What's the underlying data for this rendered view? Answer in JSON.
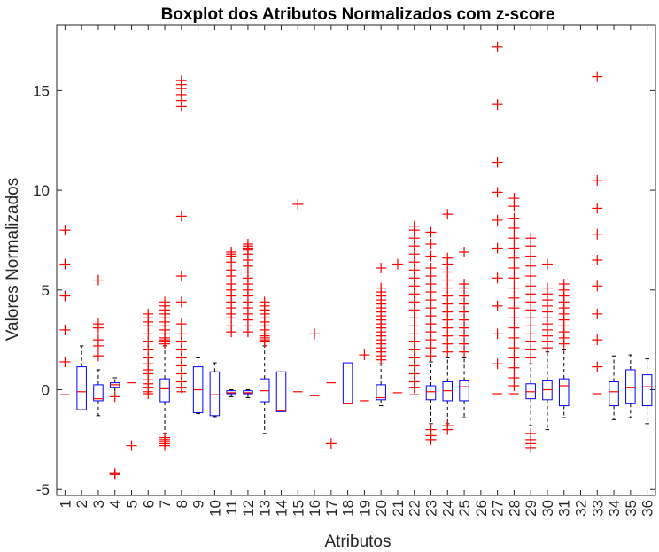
{
  "chart_data": {
    "type": "boxplot",
    "title": "Boxplot dos Atributos Normalizados com z-score",
    "xlabel": "Atributos",
    "ylabel": "Valores Normalizados",
    "ylim": [
      -5.3,
      18.3
    ],
    "yticks": [
      -5,
      0,
      5,
      10,
      15
    ],
    "categories": [
      "1",
      "2",
      "3",
      "4",
      "5",
      "6",
      "7",
      "8",
      "9",
      "10",
      "11",
      "12",
      "13",
      "14",
      "15",
      "16",
      "17",
      "18",
      "19",
      "20",
      "21",
      "22",
      "23",
      "24",
      "25",
      "26",
      "27",
      "28",
      "29",
      "30",
      "31",
      "32",
      "33",
      "34",
      "35",
      "36"
    ],
    "grid": false,
    "colors": {
      "box": "#0000ff",
      "median": "#ff0000",
      "outlier": "#ff0000",
      "whisker": "#000000",
      "axis": "#262626"
    },
    "boxes": [
      {
        "cat": "1",
        "med": -0.25,
        "q1": -0.25,
        "q3": -0.25,
        "wl": -0.25,
        "wh": -0.25,
        "out": [
          1.4,
          3.0,
          4.7,
          6.3,
          8.0
        ]
      },
      {
        "cat": "2",
        "med": -0.1,
        "q1": -1.0,
        "q3": 1.15,
        "wl": -1.0,
        "wh": 2.2,
        "out": []
      },
      {
        "cat": "3",
        "med": -0.45,
        "q1": -0.55,
        "q3": 0.25,
        "wl": -1.3,
        "wh": 1.0,
        "out": [
          1.7,
          2.2,
          2.5,
          3.1,
          3.3,
          5.5
        ]
      },
      {
        "cat": "4",
        "med": 0.25,
        "q1": 0.1,
        "q3": 0.35,
        "wl": -0.35,
        "wh": 0.6,
        "out": [
          -0.35,
          -4.2,
          -4.25
        ]
      },
      {
        "cat": "5",
        "med": 0.35,
        "q1": 0.35,
        "q3": 0.35,
        "wl": 0.35,
        "wh": 0.35,
        "out": [
          -2.8
        ]
      },
      {
        "cat": "6",
        "med": -0.1,
        "q1": -0.1,
        "q3": -0.1,
        "wl": -0.1,
        "wh": -0.1,
        "out": [
          -0.2,
          0.1,
          0.3,
          0.5,
          0.8,
          1.0,
          1.3,
          1.6,
          2.0,
          2.4,
          2.8,
          3.2,
          3.4,
          3.6,
          3.8
        ]
      },
      {
        "cat": "7",
        "med": 0.05,
        "q1": -0.6,
        "q3": 0.55,
        "wl": -2.2,
        "wh": 2.2,
        "out": [
          2.3,
          2.4,
          2.5,
          2.6,
          2.8,
          3.0,
          3.2,
          3.4,
          3.6,
          3.8,
          4.0,
          4.2,
          4.4,
          -2.4,
          -2.5,
          -2.6,
          -2.7,
          -2.8
        ]
      },
      {
        "cat": "8",
        "med": -0.1,
        "q1": -0.1,
        "q3": -0.1,
        "wl": -0.1,
        "wh": -0.1,
        "out": [
          0.1,
          0.4,
          0.8,
          1.2,
          1.6,
          2.0,
          2.4,
          2.8,
          3.3,
          4.4,
          5.7,
          8.7,
          14.2,
          14.5,
          14.8,
          15.1,
          15.3,
          15.5
        ]
      },
      {
        "cat": "9",
        "med": 0.0,
        "q1": -1.15,
        "q3": 1.15,
        "wl": -1.2,
        "wh": 1.6,
        "out": []
      },
      {
        "cat": "10",
        "med": -0.25,
        "q1": -1.3,
        "q3": 0.9,
        "wl": -1.35,
        "wh": 1.35,
        "out": []
      },
      {
        "cat": "11",
        "med": -0.15,
        "q1": -0.2,
        "q3": -0.05,
        "wl": -0.35,
        "wh": 0.0,
        "out": [
          2.9,
          3.2,
          3.6,
          3.8,
          4.1,
          4.4,
          4.7,
          5.0,
          5.3,
          5.7,
          6.0,
          6.4,
          6.7,
          6.8,
          6.9
        ]
      },
      {
        "cat": "12",
        "med": -0.15,
        "q1": -0.2,
        "q3": -0.05,
        "wl": -0.4,
        "wh": 0.0,
        "out": [
          2.9,
          3.2,
          3.5,
          3.8,
          4.1,
          4.4,
          4.7,
          5.0,
          5.3,
          5.6,
          5.9,
          6.2,
          6.5,
          6.8,
          7.0,
          7.1,
          7.2,
          7.3
        ]
      },
      {
        "cat": "13",
        "med": -0.05,
        "q1": -0.6,
        "q3": 0.55,
        "wl": -2.2,
        "wh": 2.2,
        "out": [
          2.4,
          2.5,
          2.6,
          2.7,
          2.8,
          3.0,
          3.2,
          3.4,
          3.6,
          3.8,
          4.0,
          4.2,
          4.4
        ]
      },
      {
        "cat": "14",
        "med": -1.05,
        "q1": -1.1,
        "q3": 0.9,
        "wl": -1.1,
        "wh": 0.9,
        "out": []
      },
      {
        "cat": "15",
        "med": -0.1,
        "q1": -0.1,
        "q3": -0.1,
        "wl": -0.1,
        "wh": -0.1,
        "out": [
          9.3
        ]
      },
      {
        "cat": "16",
        "med": -0.3,
        "q1": -0.3,
        "q3": -0.3,
        "wl": -0.3,
        "wh": -0.3,
        "out": [
          2.8
        ]
      },
      {
        "cat": "17",
        "med": 0.35,
        "q1": 0.35,
        "q3": 0.35,
        "wl": 0.35,
        "wh": 0.35,
        "out": [
          -2.7
        ]
      },
      {
        "cat": "18",
        "med": -0.7,
        "q1": -0.7,
        "q3": 1.35,
        "wl": -0.7,
        "wh": 1.35,
        "out": []
      },
      {
        "cat": "19",
        "med": -0.55,
        "q1": -0.55,
        "q3": -0.55,
        "wl": -0.55,
        "wh": -0.55,
        "out": [
          1.75
        ]
      },
      {
        "cat": "20",
        "med": -0.4,
        "q1": -0.5,
        "q3": 0.25,
        "wl": -0.8,
        "wh": 1.3,
        "out": [
          1.5,
          1.7,
          1.9,
          2.1,
          2.3,
          2.5,
          2.7,
          2.9,
          3.1,
          3.3,
          3.5,
          3.7,
          3.9,
          4.1,
          4.3,
          4.5,
          4.7,
          4.9,
          5.1,
          6.1
        ]
      },
      {
        "cat": "21",
        "med": -0.15,
        "q1": -0.15,
        "q3": -0.15,
        "wl": -0.15,
        "wh": -0.15,
        "out": [
          6.3
        ]
      },
      {
        "cat": "22",
        "med": -0.25,
        "q1": -0.25,
        "q3": -0.25,
        "wl": -0.25,
        "wh": -0.25,
        "out": [
          0.1,
          0.4,
          0.8,
          1.2,
          1.6,
          2.0,
          2.4,
          2.8,
          3.2,
          3.6,
          4.0,
          4.4,
          4.8,
          5.2,
          5.6,
          6.0,
          6.4,
          6.8,
          7.2,
          7.6,
          8.0,
          8.2
        ]
      },
      {
        "cat": "23",
        "med": -0.1,
        "q1": -0.5,
        "q3": 0.2,
        "wl": -1.7,
        "wh": 1.4,
        "out": [
          1.7,
          2.1,
          2.5,
          2.9,
          3.3,
          3.7,
          4.1,
          4.5,
          4.9,
          5.3,
          5.7,
          6.1,
          6.7,
          7.3,
          7.9,
          -2.0,
          -2.3,
          -2.5
        ]
      },
      {
        "cat": "24",
        "med": -0.05,
        "q1": -0.55,
        "q3": 0.4,
        "wl": -1.7,
        "wh": 1.6,
        "out": [
          1.9,
          2.3,
          2.7,
          3.1,
          3.5,
          3.9,
          4.3,
          4.7,
          5.1,
          5.5,
          5.9,
          6.3,
          6.6,
          8.8,
          -1.8,
          -2.0
        ]
      },
      {
        "cat": "25",
        "med": 0.15,
        "q1": -0.55,
        "q3": 0.45,
        "wl": -1.4,
        "wh": 1.6,
        "out": [
          1.9,
          2.3,
          2.7,
          3.1,
          3.5,
          3.9,
          4.3,
          4.7,
          5.1,
          5.3,
          6.9
        ]
      },
      {
        "cat": "27",
        "med": -0.2,
        "q1": -0.2,
        "q3": -0.2,
        "wl": -0.2,
        "wh": -0.2,
        "out": [
          1.3,
          2.8,
          4.2,
          5.6,
          7.1,
          8.5,
          9.9,
          11.4,
          14.3,
          17.2
        ]
      },
      {
        "cat": "28",
        "med": -0.2,
        "q1": -0.2,
        "q3": -0.2,
        "wl": -0.2,
        "wh": -0.2,
        "out": [
          0.2,
          0.6,
          1.1,
          1.6,
          2.1,
          2.6,
          3.1,
          3.6,
          4.1,
          4.6,
          5.1,
          5.6,
          6.1,
          6.6,
          7.1,
          7.6,
          8.1,
          8.6,
          9.2,
          9.6
        ]
      },
      {
        "cat": "29",
        "med": -0.1,
        "q1": -0.45,
        "q3": 0.3,
        "wl": -1.8,
        "wh": 1.3,
        "out": [
          1.6,
          2.0,
          2.4,
          2.8,
          3.2,
          3.6,
          4.0,
          4.4,
          4.8,
          5.2,
          5.7,
          6.2,
          6.7,
          7.2,
          7.6,
          -2.2,
          -2.5,
          -2.7,
          -2.9
        ]
      },
      {
        "cat": "30",
        "med": 0.0,
        "q1": -0.5,
        "q3": 0.45,
        "wl": -2.0,
        "wh": 1.9,
        "out": [
          2.1,
          2.4,
          2.7,
          3.0,
          3.3,
          3.6,
          3.9,
          4.2,
          4.5,
          4.8,
          5.1,
          6.3
        ]
      },
      {
        "cat": "31",
        "med": 0.2,
        "q1": -0.8,
        "q3": 0.55,
        "wl": -1.4,
        "wh": 2.0,
        "out": [
          2.3,
          2.6,
          2.9,
          3.2,
          3.5,
          3.8,
          4.1,
          4.4,
          4.7,
          5.0,
          5.3
        ]
      },
      {
        "cat": "33",
        "med": -0.2,
        "q1": -0.2,
        "q3": -0.2,
        "wl": -0.2,
        "wh": -0.2,
        "out": [
          1.15,
          2.5,
          3.8,
          5.2,
          6.5,
          7.8,
          9.1,
          10.5,
          15.7
        ]
      },
      {
        "cat": "34",
        "med": -0.1,
        "q1": -0.8,
        "q3": 0.4,
        "wl": -1.5,
        "wh": 1.7,
        "out": []
      },
      {
        "cat": "35",
        "med": 0.1,
        "q1": -0.7,
        "q3": 1.0,
        "wl": -1.4,
        "wh": 1.75,
        "out": []
      },
      {
        "cat": "36",
        "med": 0.15,
        "q1": -0.8,
        "q3": 0.75,
        "wl": -1.7,
        "wh": 1.55,
        "out": []
      }
    ]
  }
}
